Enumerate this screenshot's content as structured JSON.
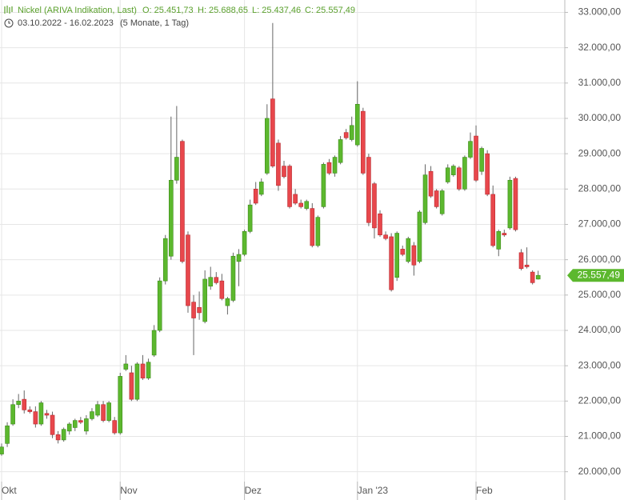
{
  "header": {
    "title": "Nickel (ARIVA Indikation, Last)",
    "open": "O: 25.451,73",
    "high": "H: 25.688,65",
    "low": "L: 25.437,46",
    "close": "C: 25.557,49",
    "range": "03.10.2022 - 16.02.2023",
    "period": "(5 Monate, 1 Tag)"
  },
  "chart_data": {
    "type": "candlestick",
    "categories": [
      "Okt",
      null,
      null,
      null,
      null,
      null,
      null,
      null,
      null,
      null,
      null,
      null,
      null,
      null,
      null,
      null,
      null,
      null,
      null,
      null,
      null,
      "Nov",
      null,
      null,
      null,
      null,
      null,
      null,
      null,
      null,
      null,
      null,
      null,
      null,
      null,
      null,
      null,
      null,
      null,
      null,
      null,
      null,
      null,
      "Dez",
      null,
      null,
      null,
      null,
      null,
      null,
      null,
      null,
      null,
      null,
      null,
      null,
      null,
      null,
      null,
      null,
      null,
      null,
      null,
      "Jan '23",
      null,
      null,
      null,
      null,
      null,
      null,
      null,
      null,
      null,
      null,
      null,
      null,
      null,
      null,
      null,
      null,
      null,
      null,
      null,
      null,
      "Feb",
      null,
      null,
      null,
      null,
      null,
      null,
      null,
      null,
      null,
      null,
      null
    ],
    "open": [
      20500,
      20800,
      21350,
      21900,
      22050,
      21750,
      21700,
      21350,
      21650,
      21600,
      21050,
      20900,
      21150,
      21250,
      21450,
      21150,
      21500,
      21600,
      21900,
      21450,
      21450,
      21100,
      22900,
      22800,
      22050,
      23050,
      22650,
      23300,
      24000,
      25400,
      26100,
      28250,
      29350,
      26700,
      24800,
      24650,
      24250,
      25250,
      25500,
      25400,
      24700,
      24850,
      25950,
      26150,
      26800,
      28000,
      27850,
      28450,
      30550,
      29300,
      28650,
      28650,
      27850,
      27600,
      27450,
      27450,
      26400,
      27500,
      28750,
      28450,
      28750,
      29600,
      29400,
      29250,
      30200,
      28900,
      28150,
      27300,
      26700,
      26650,
      25500,
      26300,
      25950,
      26400,
      25950,
      27050,
      28500,
      27950,
      27300,
      28200,
      28400,
      28600,
      28000,
      28900,
      29500,
      28500,
      29000,
      27850,
      26300,
      26750,
      26900,
      28300,
      26200,
      25850,
      25650,
      25451.73
    ],
    "high": [
      20800,
      21400,
      22050,
      22200,
      22300,
      21850,
      21850,
      22000,
      21750,
      21700,
      21150,
      21250,
      21400,
      21500,
      21550,
      21600,
      21800,
      22000,
      22000,
      22000,
      21550,
      22800,
      23300,
      23000,
      23100,
      23300,
      23200,
      24150,
      25500,
      26700,
      30050,
      30350,
      29400,
      26800,
      25000,
      25100,
      25700,
      25800,
      25650,
      25600,
      24950,
      26200,
      26300,
      26850,
      27700,
      28200,
      28300,
      30400,
      32700,
      29400,
      28800,
      28700,
      28000,
      27700,
      27700,
      27600,
      27250,
      28750,
      28850,
      28950,
      29500,
      29700,
      30050,
      31050,
      30300,
      29000,
      28200,
      27400,
      26800,
      26750,
      26800,
      26400,
      26650,
      26500,
      27400,
      28700,
      28650,
      28000,
      28000,
      28700,
      28700,
      28650,
      28950,
      29600,
      29800,
      29200,
      29100,
      28100,
      26850,
      26850,
      28350,
      28350,
      26300,
      26350,
      25700,
      25688.65
    ],
    "low": [
      20450,
      20700,
      21300,
      21800,
      21650,
      21650,
      21250,
      21300,
      21500,
      20950,
      20800,
      20850,
      21050,
      21150,
      21350,
      21050,
      21450,
      21550,
      21400,
      21400,
      21050,
      21050,
      22850,
      22000,
      22000,
      22600,
      22600,
      23250,
      23950,
      25300,
      26000,
      28150,
      25900,
      24500,
      23300,
      24300,
      24200,
      25150,
      25300,
      24850,
      24450,
      24800,
      25250,
      26100,
      26750,
      27550,
      27800,
      28400,
      28600,
      27950,
      28300,
      27450,
      27550,
      27450,
      27400,
      26350,
      26350,
      27450,
      28400,
      28350,
      28700,
      29400,
      29350,
      29200,
      28400,
      26950,
      26600,
      26650,
      26550,
      25100,
      25400,
      26100,
      25900,
      25550,
      25900,
      27000,
      27750,
      27450,
      27250,
      28150,
      28350,
      27950,
      27950,
      28850,
      28200,
      28400,
      27800,
      26350,
      26100,
      26650,
      26850,
      26800,
      25700,
      25750,
      25300,
      25437.46
    ],
    "close": [
      20700,
      21300,
      21900,
      22000,
      21750,
      21700,
      21350,
      21950,
      21600,
      21050,
      20900,
      21200,
      21350,
      21450,
      21400,
      21500,
      21700,
      21900,
      21450,
      21950,
      21100,
      22700,
      23050,
      22050,
      23050,
      22650,
      23100,
      24000,
      25400,
      26600,
      28250,
      28900,
      25950,
      24700,
      24350,
      24500,
      25450,
      25500,
      25350,
      24900,
      24900,
      26100,
      26150,
      26800,
      27550,
      27600,
      28200,
      30000,
      28650,
      28100,
      28350,
      27500,
      27600,
      27500,
      27650,
      26400,
      27200,
      28700,
      28450,
      28900,
      29400,
      29450,
      29800,
      30400,
      28450,
      27050,
      26900,
      26700,
      26600,
      25150,
      26750,
      26150,
      26600,
      25850,
      27350,
      28400,
      27800,
      27500,
      27950,
      28600,
      28650,
      28000,
      28900,
      29350,
      28250,
      29150,
      27850,
      26400,
      26800,
      26700,
      28250,
      26850,
      25750,
      25800,
      25350,
      25557.49
    ],
    "up_color": "#5cb82e",
    "down_color": "#e8474c",
    "last_label": "25.557,49",
    "ylim": [
      19200,
      33350
    ],
    "yticks": [
      {
        "value": 20000,
        "label": "20.000,00"
      },
      {
        "value": 21000,
        "label": "21.000,00"
      },
      {
        "value": 22000,
        "label": "22.000,00"
      },
      {
        "value": 23000,
        "label": "23.000,00"
      },
      {
        "value": 24000,
        "label": "24.000,00"
      },
      {
        "value": 25000,
        "label": "25.000,00"
      },
      {
        "value": 26000,
        "label": "26.000,00"
      },
      {
        "value": 27000,
        "label": "27.000,00"
      },
      {
        "value": 28000,
        "label": "28.000,00"
      },
      {
        "value": 29000,
        "label": "29.000,00"
      },
      {
        "value": 30000,
        "label": "30.000,00"
      },
      {
        "value": 31000,
        "label": "31.000,00"
      },
      {
        "value": 32000,
        "label": "32.000,00"
      },
      {
        "value": 33000,
        "label": "33.000,00"
      }
    ],
    "grid": true
  }
}
